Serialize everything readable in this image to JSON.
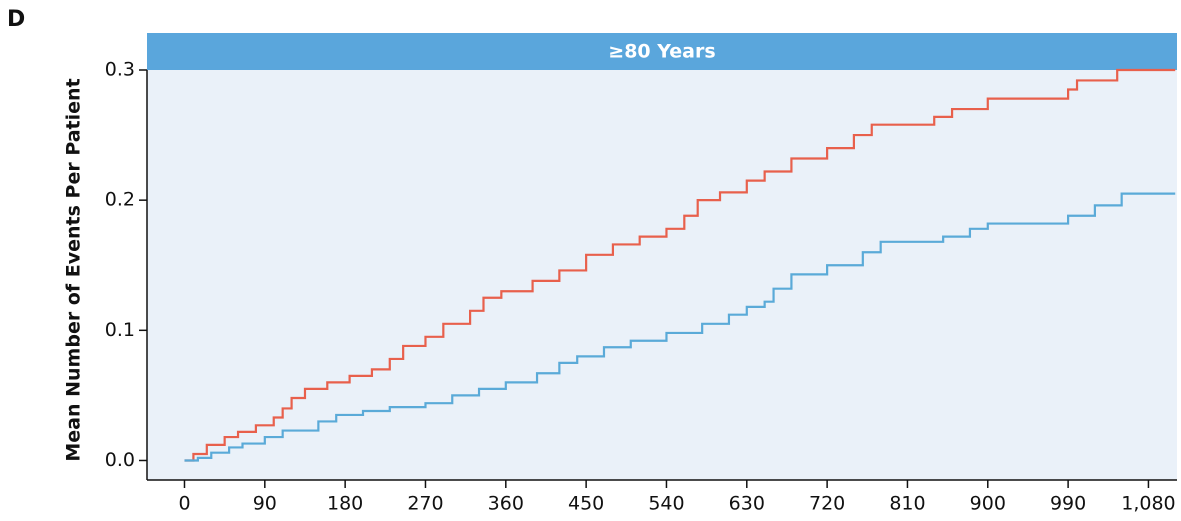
{
  "chart_data": {
    "type": "line",
    "step": "hv",
    "panel_label": "D",
    "panel_header": "≥80 Years",
    "y_label": "Mean Number of Events Per Patient",
    "xlim": [
      -42,
      1112
    ],
    "ylim": [
      -0.015,
      0.3
    ],
    "xticks": [
      0,
      90,
      180,
      270,
      360,
      450,
      540,
      630,
      720,
      810,
      900,
      990,
      {
        "value": 1080,
        "label": "1,080"
      }
    ],
    "yticks": [
      {
        "value": 0,
        "label": "0.0"
      },
      0.1,
      0.2,
      0.3
    ],
    "background": "#eaf1f9",
    "header_color": "#5aa6dc",
    "series": [
      {
        "color": "#e8604c",
        "x": [
          0,
          10,
          25,
          45,
          60,
          80,
          100,
          110,
          120,
          135,
          160,
          185,
          210,
          230,
          245,
          270,
          290,
          320,
          335,
          355,
          390,
          420,
          450,
          480,
          510,
          540,
          560,
          575,
          600,
          630,
          650,
          680,
          720,
          750,
          770,
          840,
          860,
          900,
          990,
          1000,
          1045,
          1110
        ],
        "values": [
          0,
          0.005,
          0.012,
          0.018,
          0.022,
          0.027,
          0.033,
          0.04,
          0.048,
          0.055,
          0.06,
          0.065,
          0.07,
          0.078,
          0.088,
          0.095,
          0.105,
          0.115,
          0.125,
          0.13,
          0.138,
          0.146,
          0.158,
          0.166,
          0.172,
          0.178,
          0.188,
          0.2,
          0.206,
          0.215,
          0.222,
          0.232,
          0.24,
          0.25,
          0.258,
          0.264,
          0.27,
          0.278,
          0.285,
          0.292,
          0.3,
          0.3
        ]
      },
      {
        "color": "#5aaad8",
        "x": [
          0,
          15,
          30,
          50,
          65,
          90,
          110,
          150,
          170,
          200,
          230,
          270,
          300,
          330,
          360,
          395,
          420,
          440,
          470,
          500,
          540,
          580,
          610,
          630,
          650,
          660,
          680,
          720,
          760,
          780,
          850,
          880,
          900,
          990,
          1020,
          1050,
          1110
        ],
        "values": [
          0,
          0.002,
          0.006,
          0.01,
          0.013,
          0.018,
          0.023,
          0.03,
          0.035,
          0.038,
          0.041,
          0.044,
          0.05,
          0.055,
          0.06,
          0.067,
          0.075,
          0.08,
          0.087,
          0.092,
          0.098,
          0.105,
          0.112,
          0.118,
          0.122,
          0.132,
          0.143,
          0.15,
          0.16,
          0.168,
          0.172,
          0.178,
          0.182,
          0.188,
          0.196,
          0.205,
          0.205
        ]
      }
    ]
  }
}
